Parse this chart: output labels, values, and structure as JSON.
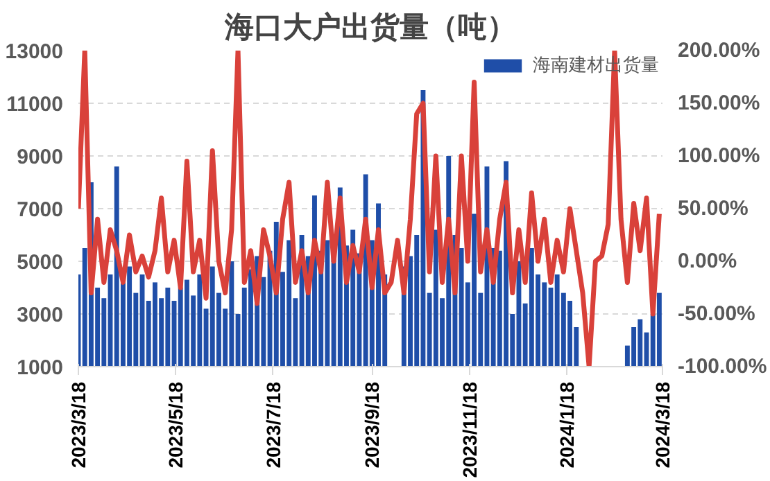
{
  "chart_data": {
    "type": "bar",
    "title": "海口大户出货量（吨）",
    "x": [
      "2023-03-18",
      "2023-03-22",
      "2023-03-26",
      "2023-03-30",
      "2023-04-03",
      "2023-04-07",
      "2023-04-11",
      "2023-04-15",
      "2023-04-19",
      "2023-04-23",
      "2023-04-27",
      "2023-05-01",
      "2023-05-05",
      "2023-05-09",
      "2023-05-13",
      "2023-05-17",
      "2023-05-21",
      "2023-05-25",
      "2023-05-29",
      "2023-06-02",
      "2023-06-06",
      "2023-06-10",
      "2023-06-14",
      "2023-06-18",
      "2023-06-22",
      "2023-06-26",
      "2023-06-30",
      "2023-07-04",
      "2023-07-08",
      "2023-07-12",
      "2023-07-16",
      "2023-07-20",
      "2023-07-24",
      "2023-07-28",
      "2023-08-01",
      "2023-08-05",
      "2023-08-09",
      "2023-08-13",
      "2023-08-17",
      "2023-08-21",
      "2023-08-25",
      "2023-08-29",
      "2023-09-02",
      "2023-09-06",
      "2023-09-10",
      "2023-09-14",
      "2023-09-18",
      "2023-09-22",
      "2023-09-26",
      "2023-09-30",
      "2023-10-04",
      "2023-10-08",
      "2023-10-12",
      "2023-10-16",
      "2023-10-20",
      "2023-10-24",
      "2023-10-28",
      "2023-11-01",
      "2023-11-05",
      "2023-11-09",
      "2023-11-13",
      "2023-11-17",
      "2023-11-21",
      "2023-11-25",
      "2023-11-29",
      "2023-12-03",
      "2023-12-07",
      "2023-12-11",
      "2023-12-15",
      "2023-12-19",
      "2023-12-23",
      "2023-12-27",
      "2023-12-31",
      "2024-01-04",
      "2024-01-08",
      "2024-01-12",
      "2024-01-16",
      "2024-01-20",
      "2024-01-24",
      "2024-01-28",
      "2024-02-01",
      "2024-02-05",
      "2024-02-09",
      "2024-02-13",
      "2024-02-17",
      "2024-02-21",
      "2024-02-25",
      "2024-02-29",
      "2024-03-04",
      "2024-03-08",
      "2024-03-12",
      "2024-03-16"
    ],
    "series": [
      {
        "name": "海南建材出货量",
        "color": "#1f4ea8",
        "values": [
          4500,
          5500,
          8000,
          4000,
          3600,
          4500,
          8600,
          4200,
          4800,
          3800,
          4500,
          3500,
          4200,
          3600,
          4000,
          3500,
          4000,
          4300,
          3700,
          4500,
          3200,
          4800,
          3800,
          3200,
          5000,
          3000,
          4000,
          4700,
          5200,
          4400,
          5400,
          6500,
          4600,
          5800,
          3600,
          6000,
          5200,
          7500,
          5400,
          5800,
          5200,
          7800,
          5600,
          6200,
          5300,
          8300,
          5800,
          7200,
          4500,
          null,
          null,
          4800,
          5200,
          6000,
          11500,
          3800,
          6200,
          3600,
          9000,
          6000,
          5500,
          4200,
          6800,
          3800,
          8600,
          5500,
          5400,
          8800,
          3000,
          5000,
          3400,
          5500,
          4500,
          4200,
          4000,
          4500,
          3800,
          3500,
          2500,
          null,
          null,
          null,
          null,
          null,
          null,
          null,
          1800,
          2500,
          2800,
          2300,
          3000,
          3800
        ]
      },
      {
        "type": "line",
        "axis": "y2",
        "color": "#d9413a",
        "values": [
          50,
          200,
          -30,
          40,
          -20,
          30,
          10,
          -20,
          25,
          -10,
          5,
          -15,
          10,
          60,
          -10,
          20,
          -25,
          95,
          -10,
          20,
          -35,
          105,
          0,
          -30,
          30,
          200,
          -20,
          10,
          -40,
          30,
          5,
          -30,
          40,
          75,
          -20,
          10,
          -30,
          20,
          -10,
          75,
          0,
          60,
          -20,
          15,
          -10,
          40,
          -25,
          30,
          -30,
          -20,
          20,
          -30,
          40,
          140,
          150,
          -10,
          100,
          -20,
          40,
          -30,
          100,
          0,
          170,
          -10,
          30,
          -20,
          40,
          75,
          -30,
          30,
          -20,
          65,
          0,
          40,
          -20,
          20,
          -10,
          50,
          10,
          -30,
          -100,
          0,
          5,
          35,
          200,
          40,
          -20,
          55,
          10,
          60,
          -50,
          45
        ]
      }
    ],
    "xlim": [
      "2023-03-18",
      "2024-03-18"
    ],
    "xticks": [
      {
        "value": "2023-03-18",
        "label": "2023/3/18"
      },
      {
        "value": "2023-05-18",
        "label": "2023/5/18"
      },
      {
        "value": "2023-07-18",
        "label": "2023/7/18"
      },
      {
        "value": "2023-09-18",
        "label": "2023/9/18"
      },
      {
        "value": "2023-11-18",
        "label": "2023/11/18"
      },
      {
        "value": "2024-01-18",
        "label": "2024/1/18"
      },
      {
        "value": "2024-03-18",
        "label": "2024/3/18"
      }
    ],
    "ylim": [
      1000,
      13000
    ],
    "yticks": [
      1000,
      3000,
      5000,
      7000,
      9000,
      11000,
      13000
    ],
    "y2lim": [
      -100,
      200
    ],
    "y2ticks": [
      {
        "value": -100,
        "label": "-100.00%"
      },
      {
        "value": -50,
        "label": "-50.00%"
      },
      {
        "value": 0,
        "label": "0.00%"
      },
      {
        "value": 50,
        "label": "50.00%"
      },
      {
        "value": 100,
        "label": "100.00%"
      },
      {
        "value": 150,
        "label": "150.00%"
      },
      {
        "value": 200,
        "label": "200.00%"
      }
    ],
    "grid": "y",
    "legend": "top right",
    "line_style": "solid",
    "marker": "none"
  }
}
